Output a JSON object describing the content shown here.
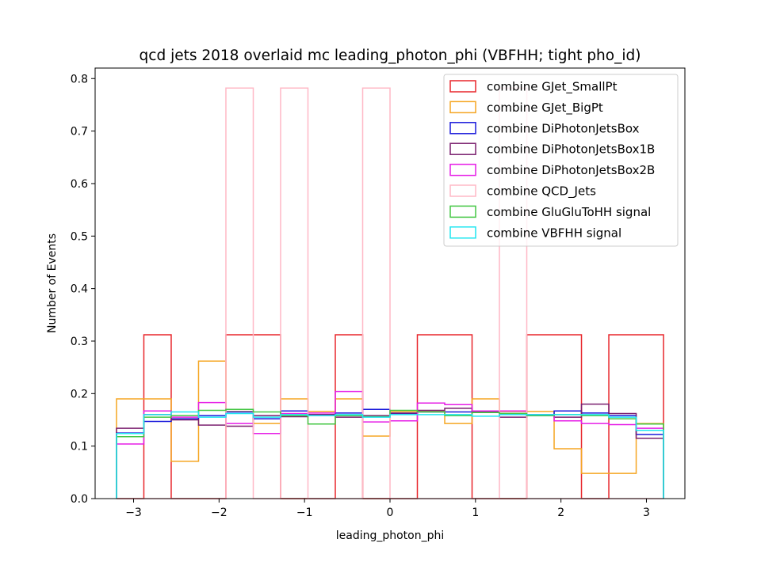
{
  "chart_data": {
    "type": "histogram",
    "title": "qcd jets 2018 overlaid mc leading_photon_phi (VBFHH; tight pho_id)",
    "xlabel": "leading_photon_phi",
    "ylabel": "Number of Events",
    "xlim": [
      -3.45,
      3.45
    ],
    "ylim": [
      0.0,
      0.82
    ],
    "xticks": [
      -3,
      -2,
      -1,
      0,
      1,
      2,
      3
    ],
    "xtick_labels": [
      "−3",
      "−2",
      "−1",
      "0",
      "1",
      "2",
      "3"
    ],
    "yticks": [
      0.0,
      0.1,
      0.2,
      0.3,
      0.4,
      0.5,
      0.6,
      0.7,
      0.8
    ],
    "ytick_labels": [
      "0.0",
      "0.1",
      "0.2",
      "0.3",
      "0.4",
      "0.5",
      "0.6",
      "0.7",
      "0.8"
    ],
    "legend_position": "top-right",
    "bin_edges": [
      -3.2,
      -2.88,
      -2.56,
      -2.24,
      -1.92,
      -1.6,
      -1.28,
      -0.96,
      -0.64,
      -0.32,
      0.0,
      0.32,
      0.64,
      0.96,
      1.28,
      1.6,
      1.92,
      2.24,
      2.56,
      2.88,
      3.2
    ],
    "series": [
      {
        "name": "combine GJet_SmallPt",
        "color": "#e8262b",
        "values": [
          0.0,
          0.312,
          0.0,
          0.0,
          0.312,
          0.312,
          0.0,
          0.0,
          0.312,
          0.0,
          0.0,
          0.312,
          0.312,
          0.0,
          0.0,
          0.312,
          0.312,
          0.0,
          0.312,
          0.312
        ]
      },
      {
        "name": "combine GJet_BigPt",
        "color": "#f5a623",
        "values": [
          0.19,
          0.19,
          0.071,
          0.262,
          0.166,
          0.143,
          0.19,
          0.166,
          0.19,
          0.119,
          0.166,
          0.166,
          0.143,
          0.19,
          0.166,
          0.166,
          0.095,
          0.048,
          0.048,
          0.143
        ]
      },
      {
        "name": "combine DiPhotonJetsBox",
        "color": "#1a1adb",
        "values": [
          0.125,
          0.147,
          0.152,
          0.158,
          0.165,
          0.152,
          0.167,
          0.16,
          0.163,
          0.17,
          0.162,
          0.165,
          0.165,
          0.165,
          0.162,
          0.158,
          0.167,
          0.163,
          0.158,
          0.122
        ]
      },
      {
        "name": "combine DiPhotonJetsBox1B",
        "color": "#7a1f6e",
        "values": [
          0.134,
          0.16,
          0.15,
          0.14,
          0.138,
          0.158,
          0.156,
          0.16,
          0.155,
          0.158,
          0.163,
          0.168,
          0.172,
          0.165,
          0.155,
          0.16,
          0.155,
          0.18,
          0.162,
          0.115
        ]
      },
      {
        "name": "combine DiPhotonJetsBox2B",
        "color": "#e61ee6",
        "values": [
          0.104,
          0.167,
          0.155,
          0.183,
          0.143,
          0.124,
          0.162,
          0.163,
          0.204,
          0.146,
          0.148,
          0.182,
          0.179,
          0.167,
          0.167,
          0.16,
          0.148,
          0.143,
          0.141,
          0.134
        ]
      },
      {
        "name": "combine QCD_Jets",
        "color": "#ffb8c6",
        "values": [
          0.0,
          0.0,
          0.0,
          0.0,
          0.782,
          0.0,
          0.782,
          0.0,
          0.0,
          0.782,
          0.0,
          0.0,
          0.0,
          0.0,
          0.782,
          0.0,
          0.0,
          0.0,
          0.0,
          0.0
        ]
      },
      {
        "name": "combine GluGluToHH signal",
        "color": "#44c744",
        "values": [
          0.118,
          0.155,
          0.158,
          0.168,
          0.17,
          0.165,
          0.158,
          0.142,
          0.158,
          0.156,
          0.168,
          0.165,
          0.158,
          0.164,
          0.162,
          0.158,
          0.16,
          0.158,
          0.152,
          0.142
        ]
      },
      {
        "name": "combine VBFHH signal",
        "color": "#1ee6f0",
        "values": [
          0.124,
          0.16,
          0.165,
          0.155,
          0.162,
          0.155,
          0.16,
          0.158,
          0.16,
          0.155,
          0.16,
          0.16,
          0.16,
          0.157,
          0.16,
          0.16,
          0.16,
          0.16,
          0.155,
          0.13
        ]
      }
    ]
  }
}
